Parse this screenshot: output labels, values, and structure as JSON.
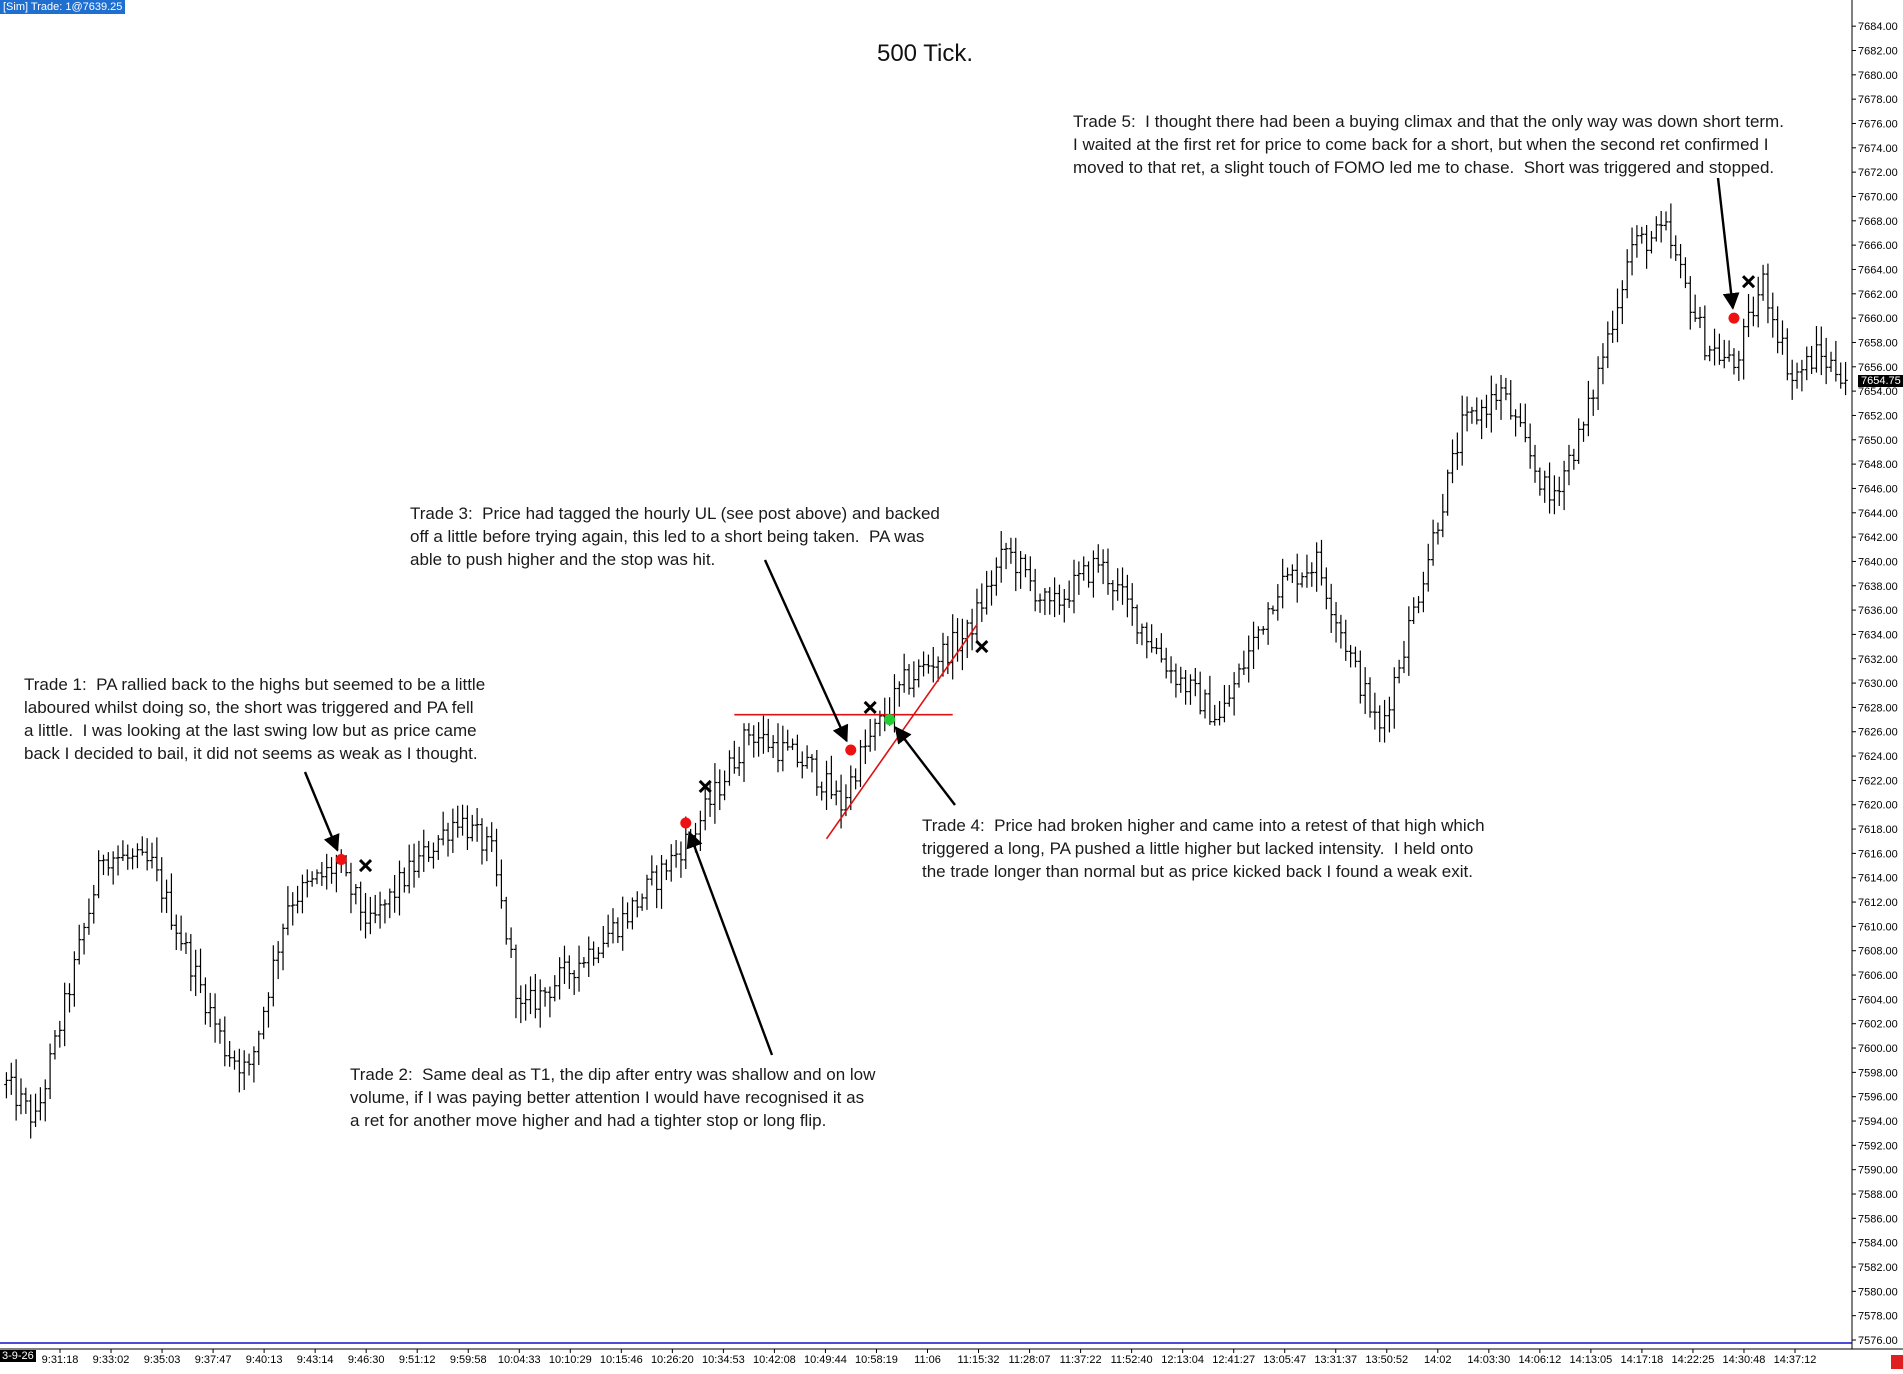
{
  "header": {
    "sim_label": "[Sim]  Trade: 1@7639.25"
  },
  "title": "500 Tick.",
  "date_label": "3-9-26",
  "current_price": "7654.75",
  "colors": {
    "bar": "#000000",
    "entry_short": "#ee1111",
    "entry_long": "#22cc33",
    "exit": "#000000",
    "trendline": "#dd1111",
    "baseline": "#1111cc"
  },
  "icons": {
    "exit": "x-mark-icon",
    "entry": "dot-icon",
    "pointer": "arrow-icon"
  },
  "annotations": {
    "trade1": "Trade 1:  PA rallied back to the highs but seemed to be a little\nlaboured whilst doing so, the short was triggered and PA fell\na little.  I was looking at the last swing low but as price came\nback I decided to bail, it did not seems as weak as I thought.",
    "trade2": "Trade 2:  Same deal as T1, the dip after entry was shallow and on low\nvolume, if I was paying better attention I would have recognised it as\na ret for another move higher and had a tighter stop or long flip.",
    "trade3": "Trade 3:  Price had tagged the hourly UL (see post above) and backed\noff a little before trying again, this led to a short being taken.  PA was\nable to push higher and the stop was hit.",
    "trade4": "Trade 4:  Price had broken higher and came into a retest of that high which\ntriggered a long, PA pushed a little higher but lacked intensity.  I held onto\nthe trade longer than normal but as price kicked back I found a weak exit.",
    "trade5": "Trade 5:  I thought there had been a buying climax and that the only way was down short term.\nI waited at the first ret for price to come back for a short, but when the second ret confirmed I\nmoved to that ret, a slight touch of FOMO led me to chase.  Short was triggered and stopped."
  },
  "chart_data": {
    "type": "ohlc",
    "title": "500 Tick.",
    "ylim": [
      7576,
      7685
    ],
    "y_ticks": [
      "7684.00",
      "7682.00",
      "7680.00",
      "7678.00",
      "7676.00",
      "7674.00",
      "7672.00",
      "7670.00",
      "7668.00",
      "7666.00",
      "7664.00",
      "7662.00",
      "7660.00",
      "7658.00",
      "7656.00",
      "7654.00",
      "7652.00",
      "7650.00",
      "7648.00",
      "7646.00",
      "7644.00",
      "7642.00",
      "7640.00",
      "7638.00",
      "7636.00",
      "7634.00",
      "7632.00",
      "7630.00",
      "7628.00",
      "7626.00",
      "7624.00",
      "7622.00",
      "7620.00",
      "7618.00",
      "7616.00",
      "7614.00",
      "7612.00",
      "7610.00",
      "7608.00",
      "7606.00",
      "7604.00",
      "7602.00",
      "7600.00",
      "7598.00",
      "7596.00",
      "7594.00",
      "7592.00",
      "7590.00",
      "7588.00",
      "7586.00",
      "7584.00",
      "7582.00",
      "7580.00",
      "7578.00",
      "7576.00"
    ],
    "x_ticks": [
      "9:31:18",
      "9:33:02",
      "9:35:03",
      "9:37:47",
      "9:40:13",
      "9:43:14",
      "9:46:30",
      "9:51:12",
      "9:59:58",
      "10:04:33",
      "10:10:29",
      "10:15:46",
      "10:26:20",
      "10:34:53",
      "10:42:08",
      "10:49:44",
      "10:58:19",
      "11:06",
      "11:15:32",
      "11:28:07",
      "11:37:22",
      "11:52:40",
      "12:13:04",
      "12:41:27",
      "13:05:47",
      "13:31:37",
      "13:50:52",
      "14:02",
      "14:03:30",
      "14:06:12",
      "14:13:05",
      "14:17:18",
      "14:22:25",
      "14:30:48",
      "14:37:12"
    ],
    "bar_count": 380,
    "price_path": [
      {
        "bar": 0,
        "price": 7597
      },
      {
        "bar": 6,
        "price": 7594
      },
      {
        "bar": 20,
        "price": 7616
      },
      {
        "bar": 30,
        "price": 7615
      },
      {
        "bar": 45,
        "price": 7600
      },
      {
        "bar": 50,
        "price": 7598
      },
      {
        "bar": 58,
        "price": 7612
      },
      {
        "bar": 68,
        "price": 7615
      },
      {
        "bar": 75,
        "price": 7610
      },
      {
        "bar": 82,
        "price": 7614
      },
      {
        "bar": 93,
        "price": 7619
      },
      {
        "bar": 100,
        "price": 7616
      },
      {
        "bar": 106,
        "price": 7603
      },
      {
        "bar": 115,
        "price": 7606
      },
      {
        "bar": 128,
        "price": 7611
      },
      {
        "bar": 142,
        "price": 7618
      },
      {
        "bar": 153,
        "price": 7626
      },
      {
        "bar": 162,
        "price": 7624
      },
      {
        "bar": 166,
        "price": 7623
      },
      {
        "bar": 172,
        "price": 7620
      },
      {
        "bar": 176,
        "price": 7624
      },
      {
        "bar": 185,
        "price": 7630
      },
      {
        "bar": 198,
        "price": 7634
      },
      {
        "bar": 206,
        "price": 7641
      },
      {
        "bar": 215,
        "price": 7636
      },
      {
        "bar": 225,
        "price": 7640
      },
      {
        "bar": 240,
        "price": 7631
      },
      {
        "bar": 250,
        "price": 7627
      },
      {
        "bar": 262,
        "price": 7638
      },
      {
        "bar": 270,
        "price": 7640
      },
      {
        "bar": 278,
        "price": 7631
      },
      {
        "bar": 283,
        "price": 7626
      },
      {
        "bar": 290,
        "price": 7636
      },
      {
        "bar": 300,
        "price": 7651
      },
      {
        "bar": 308,
        "price": 7654
      },
      {
        "bar": 318,
        "price": 7645
      },
      {
        "bar": 325,
        "price": 7651
      },
      {
        "bar": 335,
        "price": 7666
      },
      {
        "bar": 342,
        "price": 7667
      },
      {
        "bar": 350,
        "price": 7658
      },
      {
        "bar": 356,
        "price": 7656
      },
      {
        "bar": 362,
        "price": 7663
      },
      {
        "bar": 368,
        "price": 7655
      },
      {
        "bar": 373,
        "price": 7657
      },
      {
        "bar": 380,
        "price": 7655
      }
    ],
    "trades": [
      {
        "name": "Trade 1",
        "side": "short",
        "entry_bar": 69,
        "entry_price": 7615.5,
        "exit_bar": 74,
        "exit_price": 7615
      },
      {
        "name": "Trade 2",
        "side": "short",
        "entry_bar": 140,
        "entry_price": 7618.5,
        "exit_bar": 144,
        "exit_price": 7621.5
      },
      {
        "name": "Trade 3",
        "side": "short",
        "entry_bar": 174,
        "entry_price": 7624.5,
        "exit_bar": 178,
        "exit_price": 7628
      },
      {
        "name": "Trade 4",
        "side": "long",
        "entry_bar": 182,
        "entry_price": 7627,
        "exit_bar": 201,
        "exit_price": 7633
      },
      {
        "name": "Trade 5",
        "side": "short",
        "entry_bar": 356,
        "entry_price": 7660,
        "exit_bar": 359,
        "exit_price": 7663
      }
    ],
    "levels": [
      {
        "kind": "horizontal",
        "price": 7627.4,
        "from_bar": 150,
        "to_bar": 195
      },
      {
        "kind": "trendline",
        "from_bar": 169,
        "from_price": 7617.2,
        "to_bar": 200,
        "to_price": 7634.8
      }
    ]
  }
}
